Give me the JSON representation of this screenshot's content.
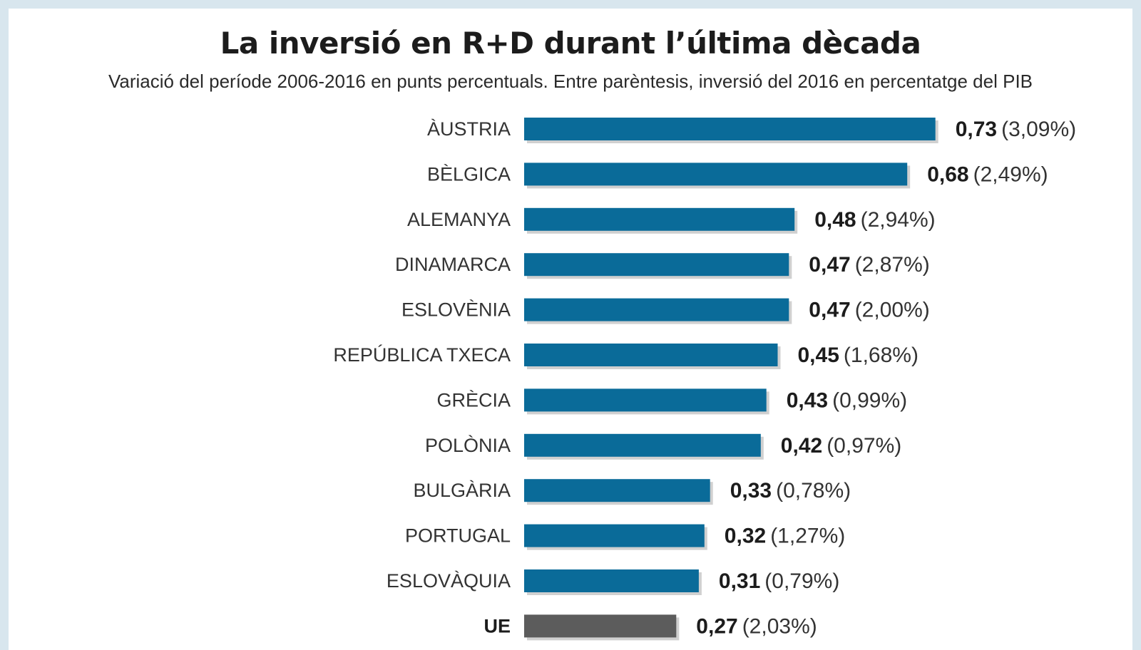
{
  "chart_data": {
    "type": "bar",
    "orientation": "horizontal",
    "title": "La inversió en R+D durant l’última dècada",
    "subtitle": "Variació del període 2006-2016 en punts percentuals. Entre parèntesis, inversió del 2016 en percentatge del PIB",
    "categories": [
      "ÀUSTRIA",
      "BÈLGICA",
      "ALEMANYA",
      "DINAMARCA",
      "ESLOVÈNIA",
      "REPÚBLICA TXECA",
      "GRÈCIA",
      "POLÒNIA",
      "BULGÀRIA",
      "PORTUGAL",
      "ESLOVÀQUIA",
      "UE"
    ],
    "values": [
      0.73,
      0.68,
      0.48,
      0.47,
      0.47,
      0.45,
      0.43,
      0.42,
      0.33,
      0.32,
      0.31,
      0.27
    ],
    "value_labels": [
      "0,73",
      "0,68",
      "0,48",
      "0,47",
      "0,47",
      "0,45",
      "0,43",
      "0,42",
      "0,33",
      "0,32",
      "0,31",
      "0,27"
    ],
    "gdp_share_2016": [
      "(3,09%)",
      "(2,49%)",
      "(2,94%)",
      "(2,87%)",
      "(2,00%)",
      "(1,68%)",
      "(0,99%)",
      "(0,97%)",
      "(0,78%)",
      "(1,27%)",
      "(0,79%)",
      "(2,03%)"
    ],
    "xlim": [
      0,
      0.75
    ],
    "grid": false,
    "colors": {
      "bar": "#0a6b99",
      "highlight_bar": "#5c5c5c",
      "shadow": "#d0d0d0",
      "frame": "#d8e6ee"
    },
    "highlight_category": "UE"
  }
}
